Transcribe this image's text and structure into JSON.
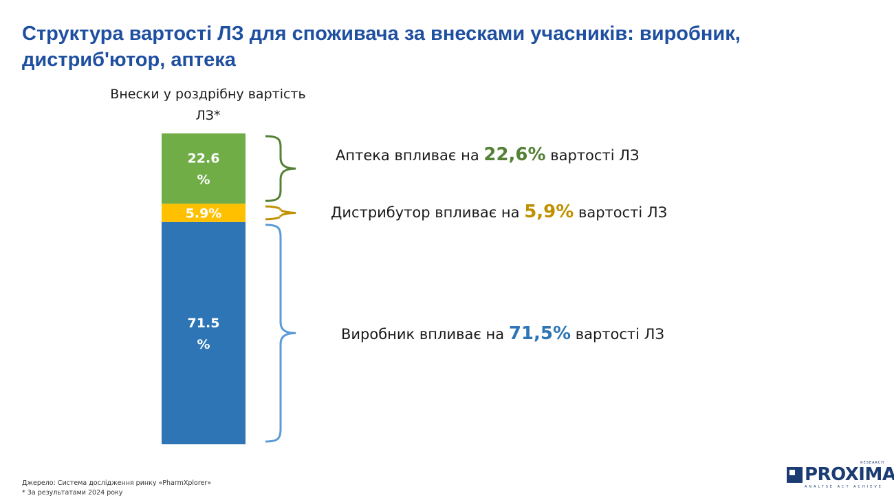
{
  "header": {
    "title_line1": "Структура вартості ЛЗ для споживача за внесками учасників: виробник,",
    "title_line2": "дистриб'ютор, аптека"
  },
  "chart_data": {
    "type": "bar",
    "title_line1": "Внески у роздрібну вартість",
    "title_line2": "ЛЗ*",
    "series": [
      {
        "name": "Виробник",
        "value": 71.5,
        "color": "#2e75b6",
        "label_line1": "71.5",
        "label_line2": "%"
      },
      {
        "name": "Дистрибутор",
        "value": 5.9,
        "color": "#ffc000",
        "label_line1": "5.9%",
        "label_line2": ""
      },
      {
        "name": "Аптека",
        "value": 22.6,
        "color": "#70ad47",
        "label_line1": "22.6",
        "label_line2": "%"
      }
    ]
  },
  "annotations": [
    {
      "prefix": "Аптека впливає на ",
      "value": "22,6%",
      "suffix": " вартості ЛЗ",
      "color": "#538135"
    },
    {
      "prefix": "Дистрибутор впливає на ",
      "value": "5,9%",
      "suffix": " вартості ЛЗ",
      "color": "#bf9000"
    },
    {
      "prefix": "Виробник впливає на ",
      "value": "71,5%",
      "suffix": " вартості ЛЗ",
      "color": "#2e75b6"
    }
  ],
  "brace_colors": [
    "#538135",
    "#bf9000",
    "#5b9bd5"
  ],
  "footer": {
    "source": "Джерело: Система дослідження ринку «PharmXplorer»",
    "note": "* За результатами 2024 року"
  },
  "logo": {
    "name": "PROXIMA",
    "research": "RESEARCH",
    "tagline": "ANALYSE ACT ACHIEVE"
  }
}
